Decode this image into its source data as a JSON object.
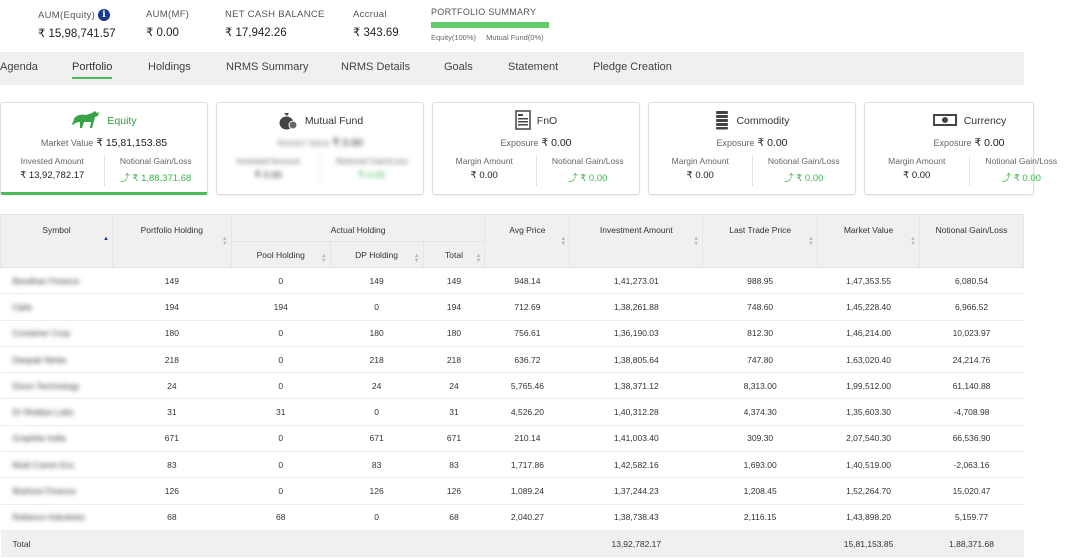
{
  "summary": {
    "aum_equity": {
      "label": "AUM(Equity)",
      "value": "₹ 15,98,741.57"
    },
    "aum_mf": {
      "label": "AUM(MF)",
      "value": "₹ 0.00"
    },
    "net_cash": {
      "label": "NET CASH BALANCE",
      "value": "₹ 17,942.26"
    },
    "accrual": {
      "label": "Accrual",
      "value": "₹ 343.69"
    },
    "portfolio_summary": {
      "label": "PORTFOLIO SUMMARY",
      "equity_pct": 1.0,
      "legend_equity": "Equity(100%)",
      "legend_mf": "Mutual Fund(0%)",
      "bar_color": "#5fce6a"
    }
  },
  "tabs": [
    "Agenda",
    "Portfolio",
    "Holdings",
    "NRMS Summary",
    "NRMS Details",
    "Goals",
    "Statement",
    "Pledge Creation"
  ],
  "active_tab": "Portfolio",
  "cards": {
    "equity": {
      "title": "Equity",
      "line_label": "Market Value",
      "line_value": "₹ 15,81,153.85",
      "col1_label": "Invested Amount",
      "col1_value": "₹ 13,92,782.17",
      "col2_label": "Notional Gain/Loss",
      "col2_value": "₹ 1,88,371.68"
    },
    "mutual_fund": {
      "title": "Mutual Fund",
      "line_label": "Market Value",
      "line_value": "₹ 0.00",
      "col1_label": "Invested Amount",
      "col1_value": "₹ 0.00",
      "col2_label": "Notional Gain/Loss",
      "col2_value": "₹ 0.00"
    },
    "fno": {
      "title": "FnO",
      "line_label": "Exposure",
      "line_value": "₹ 0.00",
      "col1_label": "Margin Amount",
      "col1_value": "₹ 0.00",
      "col2_label": "Notional Gain/Loss",
      "col2_value": "₹ 0.00"
    },
    "commodity": {
      "title": "Commodity",
      "line_label": "Exposure",
      "line_value": "₹ 0.00",
      "col1_label": "Margin Amount",
      "col1_value": "₹ 0.00",
      "col2_label": "Notional Gain/Loss",
      "col2_value": "₹ 0.00"
    },
    "currency": {
      "title": "Currency",
      "line_label": "Exposure",
      "line_value": "₹ 0.00",
      "col1_label": "Margin Amount",
      "col1_value": "₹ 0.00",
      "col2_label": "Notional Gain/Loss",
      "col2_value": "₹ 0.00"
    }
  },
  "table": {
    "headers": {
      "symbol": "Symbol",
      "portfolio_holding": "Portfolio Holding",
      "actual_holding": "Actual Holding",
      "pool_holding": "Pool Holding",
      "dp_holding": "DP Holding",
      "total": "Total",
      "avg_price": "Avg Price",
      "investment_amount": "Investment Amount",
      "last_trade_price": "Last Trade Price",
      "market_value": "Market Value",
      "notional_gain_loss": "Notional Gain/Loss"
    },
    "rows": [
      {
        "symbol": "Bandhan Finance",
        "ph": "149",
        "pool": "0",
        "dp": "149",
        "total": "149",
        "avg": "948.14",
        "inv": "1,41,273.01",
        "ltp": "988.95",
        "mv": "1,47,353.55",
        "gl": "6,080.54"
      },
      {
        "symbol": "Cipla",
        "ph": "194",
        "pool": "194",
        "dp": "0",
        "total": "194",
        "avg": "712.69",
        "inv": "1,38,261.88",
        "ltp": "748.60",
        "mv": "1,45,228.40",
        "gl": "6,966.52"
      },
      {
        "symbol": "Container Corp",
        "ph": "180",
        "pool": "0",
        "dp": "180",
        "total": "180",
        "avg": "756.61",
        "inv": "1,36,190.03",
        "ltp": "812.30",
        "mv": "1,46,214.00",
        "gl": "10,023.97"
      },
      {
        "symbol": "Deepak Nitrite",
        "ph": "218",
        "pool": "0",
        "dp": "218",
        "total": "218",
        "avg": "636.72",
        "inv": "1,38,805.64",
        "ltp": "747.80",
        "mv": "1,63,020.40",
        "gl": "24,214.76"
      },
      {
        "symbol": "Dixon Technology",
        "ph": "24",
        "pool": "0",
        "dp": "24",
        "total": "24",
        "avg": "5,765.46",
        "inv": "1,38,371.12",
        "ltp": "8,313.00",
        "mv": "1,99,512.00",
        "gl": "61,140.88"
      },
      {
        "symbol": "Dr Reddys Labs",
        "ph": "31",
        "pool": "31",
        "dp": "0",
        "total": "31",
        "avg": "4,526.20",
        "inv": "1,40,312.28",
        "ltp": "4,374.30",
        "mv": "1,35,603.30",
        "gl": "-4,708.98"
      },
      {
        "symbol": "Graphite India",
        "ph": "671",
        "pool": "0",
        "dp": "671",
        "total": "671",
        "avg": "210.14",
        "inv": "1,41,003.40",
        "ltp": "309.30",
        "mv": "2,07,540.30",
        "gl": "66,536.90"
      },
      {
        "symbol": "Multi Comm Exc",
        "ph": "83",
        "pool": "0",
        "dp": "83",
        "total": "83",
        "avg": "1,717.86",
        "inv": "1,42,582.16",
        "ltp": "1,693.00",
        "mv": "1,40,519.00",
        "gl": "-2,063.16"
      },
      {
        "symbol": "Muthoot Finance",
        "ph": "126",
        "pool": "0",
        "dp": "126",
        "total": "126",
        "avg": "1,089.24",
        "inv": "1,37,244.23",
        "ltp": "1,208.45",
        "mv": "1,52,264.70",
        "gl": "15,020.47"
      },
      {
        "symbol": "Reliance Industries",
        "ph": "68",
        "pool": "68",
        "dp": "0",
        "total": "68",
        "avg": "2,040.27",
        "inv": "1,38,738.43",
        "ltp": "2,116.15",
        "mv": "1,43,898.20",
        "gl": "5,159.77"
      }
    ],
    "total_row": {
      "label": "Total",
      "inv": "13,92,782.17",
      "mv": "15,81,153.85",
      "gl": "1,88,371.68"
    }
  }
}
